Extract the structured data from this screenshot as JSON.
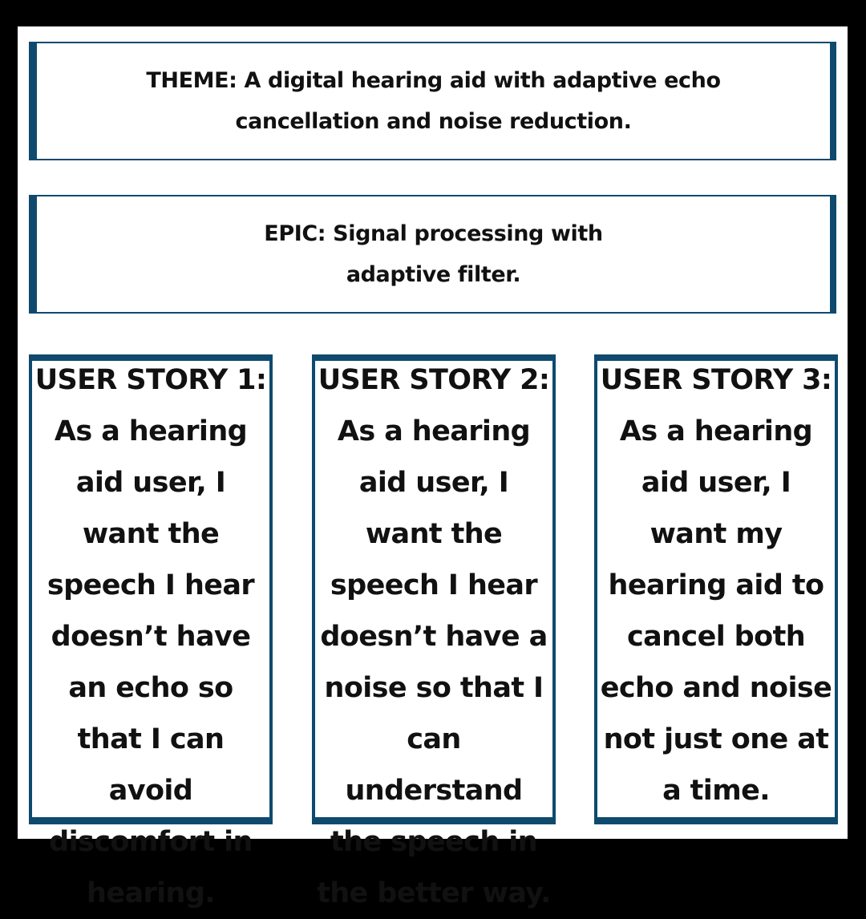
{
  "theme": {
    "text": "THEME: A digital hearing aid with adaptive echo cancellation and noise reduction."
  },
  "epic": {
    "text": "EPIC: Signal processing with adaptive filter."
  },
  "stories": [
    {
      "title": "USER STORY 1:",
      "text": "As a hearing aid user, I want the speech I hear doesn’t have an echo so that I can avoid discomfort in hearing."
    },
    {
      "title": "USER STORY 2:",
      "text": "As a hearing aid user, I want the speech I hear doesn’t have a noise so that I can understand the speech in the better way."
    },
    {
      "title": "USER STORY 3:",
      "text": "As a hearing aid user, I want my hearing aid to cancel both echo and noise not just one at a time."
    }
  ],
  "colors": {
    "border": "#0f4a6e",
    "outer_background": "#000000",
    "panel_background": "#ffffff",
    "text": "#111111"
  }
}
